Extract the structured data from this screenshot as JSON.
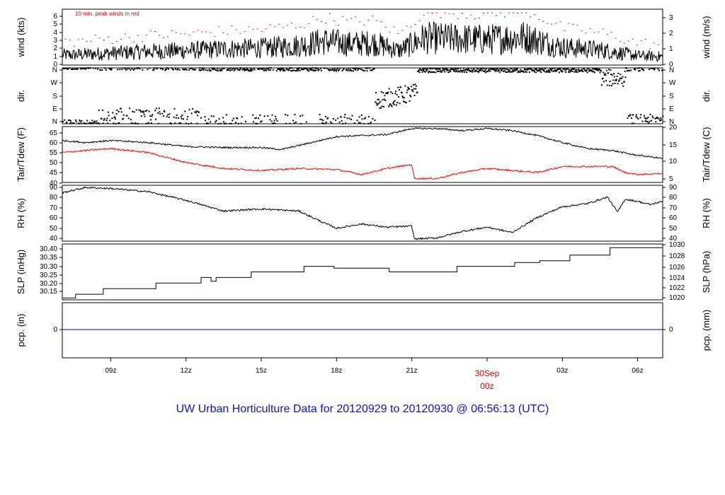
{
  "title": "UW Urban Horticulture Data for 20120929  to  20120930 @ 06:56:13  (UTC)",
  "colors": {
    "primary": "#000000",
    "dew": "#ff0000",
    "gust": "#ff0000",
    "precip": "#0000cc",
    "title": "#1010d0"
  },
  "time_axis": {
    "ticks": [
      {
        "label": "09z",
        "hours": 9
      },
      {
        "label": "12z",
        "hours": 12
      },
      {
        "label": "15z",
        "hours": 15
      },
      {
        "label": "18z",
        "hours": 18
      },
      {
        "label": "21z",
        "hours": 21
      },
      {
        "label": "00z",
        "hours": 24
      },
      {
        "label": "03z",
        "hours": 27
      },
      {
        "label": "06z",
        "hours": 30
      }
    ],
    "range_hours": [
      7.07,
      31.0
    ],
    "day_label": "30Sep",
    "day_hour_label": "00z"
  },
  "chart_data": [
    {
      "type": "line",
      "id": "wind",
      "ylabel_left": "wind (kts)",
      "ylabel_right": "wind (m/s)",
      "ylim": [
        0,
        7
      ],
      "yticks_left": [
        "0",
        "1",
        "2",
        "3",
        "4",
        "5",
        "6"
      ],
      "yticks_right": [
        "0",
        "1",
        "2",
        "3"
      ],
      "annotation": "10 min. peak winds in red",
      "series": [
        {
          "values_x": [
            7.5,
            9,
            10.5,
            12,
            13.5,
            15,
            16.5,
            17.5,
            18.5,
            19.5,
            20.5,
            21.5,
            22.5,
            24,
            25.5,
            27,
            28.5,
            30,
            31
          ],
          "values": [
            1.2,
            1.4,
            1.6,
            1.7,
            1.9,
            2.0,
            2.3,
            2.8,
            2.5,
            2.6,
            1.7,
            3.2,
            3.1,
            3.0,
            3.3,
            2.1,
            1.8,
            1.1,
            1.0
          ]
        }
      ],
      "peak_range": [
        1.5,
        6.6
      ]
    },
    {
      "type": "scatter",
      "id": "direction",
      "ylabel_left": "dir.",
      "ylabel_right": "dir.",
      "yticks_left": [
        "N",
        "E",
        "S",
        "W",
        "N"
      ],
      "yticks_right": [
        "N",
        "E",
        "S",
        "W",
        "N"
      ],
      "ylim": [
        0,
        360
      ]
    },
    {
      "type": "line",
      "id": "temperature",
      "ylabel_left": "Tair/Tdew (F)",
      "ylabel_right": "Tair/Tdew (C)",
      "ylim": [
        40,
        68
      ],
      "yticks_left": [
        "40",
        "45",
        "50",
        "55",
        "60",
        "65"
      ],
      "yticks_right": [
        "5",
        "10",
        "15",
        "20"
      ],
      "series": [
        {
          "x": [
            7.07,
            8,
            9,
            10.5,
            12,
            13.5,
            15,
            15.8,
            17,
            18,
            19,
            20,
            21,
            22,
            23,
            24,
            25,
            26,
            27,
            28,
            29,
            29.8,
            31
          ],
          "values": [
            61,
            60,
            61,
            60,
            58,
            57.5,
            57.5,
            56.5,
            60,
            63,
            63.5,
            64,
            67,
            67,
            66,
            67,
            66,
            63.5,
            60,
            57,
            56,
            54,
            52
          ]
        },
        {
          "x": [
            7.07,
            8,
            9,
            10.5,
            12,
            13.5,
            15,
            16.5,
            18,
            19,
            20,
            21,
            21.1,
            22,
            23,
            24,
            25,
            26,
            27,
            28,
            29,
            29.5,
            30,
            31
          ],
          "values": [
            55,
            56,
            57,
            55,
            50,
            47,
            46,
            47,
            46.5,
            44,
            47,
            49,
            42,
            42,
            45,
            47,
            46,
            45,
            48,
            48,
            48,
            45,
            44,
            44.5
          ]
        }
      ]
    },
    {
      "type": "line",
      "id": "humidity",
      "ylabel_left": "RH (%)",
      "ylabel_right": "RH (%)",
      "ylim": [
        38,
        90
      ],
      "yticks_left": [
        "40",
        "50",
        "60",
        "70",
        "80",
        "90"
      ],
      "yticks_right": [
        "40",
        "50",
        "60",
        "70",
        "80",
        "90"
      ],
      "series": [
        {
          "x": [
            7.07,
            8,
            9,
            10.5,
            12,
            13.5,
            15,
            16.5,
            17.5,
            18,
            19,
            20,
            21,
            21.1,
            22,
            23,
            24,
            25,
            26,
            27,
            28,
            28.8,
            29.2,
            29.5,
            30,
            30.5,
            31
          ],
          "values": [
            83,
            88,
            87,
            84,
            76,
            66,
            68,
            66,
            55,
            50,
            54,
            51,
            52,
            40,
            41,
            47,
            51,
            46,
            60,
            70,
            73,
            79,
            65,
            77,
            75,
            72,
            75
          ]
        }
      ]
    },
    {
      "type": "line",
      "id": "pressure",
      "ylabel_left": "SLP (inHg)",
      "ylabel_right": "SLP (hPa)",
      "ylim": [
        30.12,
        30.42
      ],
      "yticks_left": [
        "30.15",
        "30.20",
        "30.25",
        "30.30",
        "30.35",
        "30.40"
      ],
      "yticks_right": [
        "1020",
        "1022",
        "1024",
        "1026",
        "1028",
        "1030"
      ],
      "series": [
        {
          "x": [
            7.07,
            7.6,
            8.7,
            10.8,
            12.6,
            13,
            13.2,
            14.6,
            16.7,
            17.9,
            20.1,
            21.2,
            22.8,
            24.3,
            25.1,
            26.1,
            27.3,
            28.9,
            31
          ],
          "values": [
            30.13,
            30.15,
            30.18,
            30.21,
            30.24,
            30.22,
            30.24,
            30.27,
            30.3,
            30.29,
            30.27,
            30.27,
            30.3,
            30.3,
            30.32,
            30.33,
            30.36,
            30.4,
            30.41
          ]
        }
      ]
    },
    {
      "type": "line",
      "id": "precipitation",
      "ylabel_left": "pcp. (in)",
      "ylabel_right": "pcp. (mm)",
      "yticks_left": [
        "0"
      ],
      "yticks_right": [
        "0"
      ],
      "series": [
        {
          "x": [
            7.07,
            31
          ],
          "values": [
            0,
            0
          ]
        }
      ]
    }
  ]
}
